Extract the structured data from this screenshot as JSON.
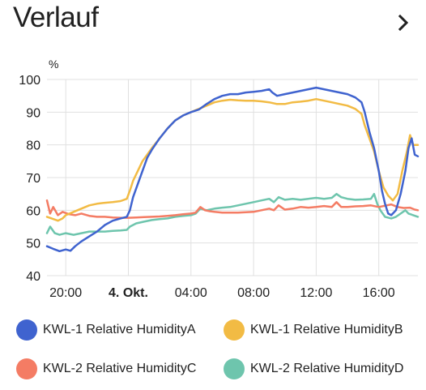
{
  "header": {
    "title": "Verlauf",
    "more_icon": "chevron-right-icon"
  },
  "colors": {
    "series_a": "#3f63cf",
    "series_b": "#f2bb44",
    "series_c": "#f47c64",
    "series_d": "#6ec5ad",
    "grid": "#e0e0e0",
    "text": "#212121"
  },
  "chart_data": {
    "type": "line",
    "ylabel": "%",
    "ylim": [
      40,
      100
    ],
    "yticks": [
      40,
      50,
      60,
      70,
      80,
      90,
      100
    ],
    "xlim": [
      18.8,
      42.5
    ],
    "xticks": [
      {
        "x": 20,
        "label": "20:00",
        "bold": false
      },
      {
        "x": 24,
        "label": "4. Okt.",
        "bold": true
      },
      {
        "x": 28,
        "label": "04:00",
        "bold": false
      },
      {
        "x": 32,
        "label": "08:00",
        "bold": false
      },
      {
        "x": 36,
        "label": "12:00",
        "bold": false
      },
      {
        "x": 40,
        "label": "16:00",
        "bold": false
      }
    ],
    "grid": true,
    "legend_position": "bottom",
    "series": [
      {
        "name": "KWL-1 Relative HumidityA",
        "color_key": "series_a",
        "points": [
          [
            18.8,
            49
          ],
          [
            19.2,
            48.2
          ],
          [
            19.6,
            47.5
          ],
          [
            20,
            48
          ],
          [
            20.3,
            47.6
          ],
          [
            20.6,
            49
          ],
          [
            21,
            50.5
          ],
          [
            21.5,
            52
          ],
          [
            22,
            53.5
          ],
          [
            22.5,
            55.5
          ],
          [
            23,
            56.8
          ],
          [
            23.5,
            57.5
          ],
          [
            23.9,
            58
          ],
          [
            24.1,
            60
          ],
          [
            24.3,
            64
          ],
          [
            24.6,
            68
          ],
          [
            24.9,
            72
          ],
          [
            25.2,
            76
          ],
          [
            25.5,
            78.5
          ],
          [
            26,
            82
          ],
          [
            26.5,
            85
          ],
          [
            27,
            87.5
          ],
          [
            27.5,
            89
          ],
          [
            28,
            90
          ],
          [
            28.5,
            90.8
          ],
          [
            29,
            92.5
          ],
          [
            29.5,
            94
          ],
          [
            30,
            95
          ],
          [
            30.5,
            95.5
          ],
          [
            31,
            95.5
          ],
          [
            31.5,
            96
          ],
          [
            32,
            96.2
          ],
          [
            32.5,
            96.5
          ],
          [
            33,
            97
          ],
          [
            33.2,
            96
          ],
          [
            33.5,
            95
          ],
          [
            34,
            95.5
          ],
          [
            34.5,
            96
          ],
          [
            35,
            96.5
          ],
          [
            35.5,
            97
          ],
          [
            36,
            97.5
          ],
          [
            36.5,
            97
          ],
          [
            37,
            96.5
          ],
          [
            37.5,
            96
          ],
          [
            38,
            95.5
          ],
          [
            38.5,
            94.5
          ],
          [
            38.9,
            93
          ],
          [
            39.1,
            90
          ],
          [
            39.4,
            84
          ],
          [
            39.7,
            79
          ],
          [
            40,
            72
          ],
          [
            40.2,
            66
          ],
          [
            40.4,
            62
          ],
          [
            40.6,
            59
          ],
          [
            40.8,
            58.5
          ],
          [
            41.1,
            60
          ],
          [
            41.4,
            65
          ],
          [
            41.7,
            72
          ],
          [
            41.9,
            79
          ],
          [
            42.1,
            82
          ],
          [
            42.3,
            77
          ],
          [
            42.5,
            76.5
          ]
        ]
      },
      {
        "name": "KWL-1 Relative HumidityB",
        "color_key": "series_b",
        "points": [
          [
            18.8,
            58
          ],
          [
            19.1,
            57.5
          ],
          [
            19.5,
            56.8
          ],
          [
            19.8,
            57.5
          ],
          [
            20,
            58.5
          ],
          [
            20.5,
            59.5
          ],
          [
            21,
            60.5
          ],
          [
            21.5,
            61.5
          ],
          [
            22,
            62
          ],
          [
            22.5,
            62.3
          ],
          [
            23,
            62.5
          ],
          [
            23.5,
            62.8
          ],
          [
            23.9,
            63.5
          ],
          [
            24.1,
            66
          ],
          [
            24.3,
            69
          ],
          [
            24.6,
            72
          ],
          [
            24.9,
            75
          ],
          [
            25.2,
            77
          ],
          [
            25.5,
            79
          ],
          [
            26,
            82
          ],
          [
            26.5,
            85
          ],
          [
            27,
            87.5
          ],
          [
            27.5,
            89
          ],
          [
            28,
            90
          ],
          [
            28.5,
            91
          ],
          [
            29,
            92
          ],
          [
            29.5,
            93
          ],
          [
            30,
            93.5
          ],
          [
            30.5,
            93.8
          ],
          [
            31,
            93.6
          ],
          [
            31.5,
            93.5
          ],
          [
            32,
            93.5
          ],
          [
            32.5,
            93.3
          ],
          [
            33,
            93
          ],
          [
            33.5,
            92.5
          ],
          [
            34,
            92.5
          ],
          [
            34.5,
            93
          ],
          [
            35,
            93.2
          ],
          [
            35.5,
            93.5
          ],
          [
            36,
            94
          ],
          [
            36.5,
            93.5
          ],
          [
            37,
            93
          ],
          [
            37.5,
            92.5
          ],
          [
            38,
            92
          ],
          [
            38.5,
            91
          ],
          [
            38.9,
            89.5
          ],
          [
            39.1,
            86
          ],
          [
            39.4,
            82
          ],
          [
            39.7,
            78
          ],
          [
            40,
            72
          ],
          [
            40.3,
            67
          ],
          [
            40.6,
            64.5
          ],
          [
            40.9,
            63
          ],
          [
            41.2,
            65
          ],
          [
            41.5,
            72
          ],
          [
            41.8,
            78
          ],
          [
            42,
            83
          ],
          [
            42.2,
            80
          ],
          [
            42.5,
            80
          ]
        ]
      },
      {
        "name": "KWL-2 Relative HumidityC",
        "color_key": "series_c",
        "points": [
          [
            18.8,
            63
          ],
          [
            19,
            59
          ],
          [
            19.2,
            61
          ],
          [
            19.5,
            58.5
          ],
          [
            19.8,
            59.5
          ],
          [
            20.2,
            58.8
          ],
          [
            20.6,
            58.5
          ],
          [
            21,
            59
          ],
          [
            21.5,
            58.3
          ],
          [
            22,
            58
          ],
          [
            22.5,
            58
          ],
          [
            23,
            57.8
          ],
          [
            23.5,
            57.7
          ],
          [
            24,
            57.7
          ],
          [
            24.5,
            57.8
          ],
          [
            25,
            57.9
          ],
          [
            25.5,
            58
          ],
          [
            26,
            58.1
          ],
          [
            26.5,
            58.3
          ],
          [
            27,
            58.5
          ],
          [
            27.5,
            58.8
          ],
          [
            28,
            59
          ],
          [
            28.3,
            59.3
          ],
          [
            28.6,
            61
          ],
          [
            28.9,
            60
          ],
          [
            29.2,
            59.7
          ],
          [
            29.5,
            59.5
          ],
          [
            30,
            59.3
          ],
          [
            30.5,
            59.3
          ],
          [
            31,
            59.3
          ],
          [
            31.5,
            59.4
          ],
          [
            32,
            59.5
          ],
          [
            32.5,
            60
          ],
          [
            33,
            60.5
          ],
          [
            33.3,
            60
          ],
          [
            33.6,
            61.5
          ],
          [
            34,
            60.2
          ],
          [
            34.5,
            60.5
          ],
          [
            35,
            61
          ],
          [
            35.5,
            60.8
          ],
          [
            36,
            61
          ],
          [
            36.5,
            61.3
          ],
          [
            37,
            61
          ],
          [
            37.3,
            62.5
          ],
          [
            37.6,
            61
          ],
          [
            38,
            61
          ],
          [
            38.5,
            61.2
          ],
          [
            39,
            61.3
          ],
          [
            39.5,
            61.5
          ],
          [
            40,
            61
          ],
          [
            40.5,
            61.5
          ],
          [
            40.8,
            61.8
          ],
          [
            41.2,
            61
          ],
          [
            41.6,
            60.7
          ],
          [
            42,
            60.8
          ],
          [
            42.3,
            60.2
          ],
          [
            42.5,
            60
          ]
        ]
      },
      {
        "name": "KWL-2 Relative HumidityD",
        "color_key": "series_d",
        "points": [
          [
            18.8,
            53
          ],
          [
            19,
            55
          ],
          [
            19.3,
            53
          ],
          [
            19.6,
            52.5
          ],
          [
            20,
            53
          ],
          [
            20.5,
            52.5
          ],
          [
            21,
            53
          ],
          [
            21.5,
            53.5
          ],
          [
            22,
            53.5
          ],
          [
            22.5,
            53.5
          ],
          [
            23,
            53.7
          ],
          [
            23.5,
            53.8
          ],
          [
            23.9,
            54
          ],
          [
            24.1,
            55
          ],
          [
            24.5,
            56
          ],
          [
            25,
            56.5
          ],
          [
            25.5,
            57
          ],
          [
            26,
            57.3
          ],
          [
            26.5,
            57.5
          ],
          [
            27,
            58
          ],
          [
            27.5,
            58.3
          ],
          [
            28,
            58.5
          ],
          [
            28.3,
            59
          ],
          [
            28.6,
            60.5
          ],
          [
            29,
            60
          ],
          [
            29.5,
            60.5
          ],
          [
            30,
            60.8
          ],
          [
            30.5,
            61
          ],
          [
            31,
            61.5
          ],
          [
            31.5,
            62
          ],
          [
            32,
            62.5
          ],
          [
            32.5,
            63
          ],
          [
            33,
            63.5
          ],
          [
            33.3,
            62.5
          ],
          [
            33.6,
            64
          ],
          [
            34,
            63.2
          ],
          [
            34.5,
            63.5
          ],
          [
            35,
            63.2
          ],
          [
            35.5,
            63.5
          ],
          [
            36,
            63.8
          ],
          [
            36.5,
            63.5
          ],
          [
            37,
            63.8
          ],
          [
            37.3,
            65
          ],
          [
            37.6,
            64
          ],
          [
            38,
            63.5
          ],
          [
            38.5,
            63.2
          ],
          [
            39,
            63.3
          ],
          [
            39.5,
            63.5
          ],
          [
            39.7,
            65
          ],
          [
            39.9,
            62
          ],
          [
            40.1,
            60
          ],
          [
            40.4,
            58
          ],
          [
            40.8,
            57.5
          ],
          [
            41.1,
            58
          ],
          [
            41.4,
            59
          ],
          [
            41.7,
            60
          ],
          [
            41.9,
            59
          ],
          [
            42.2,
            58.5
          ],
          [
            42.5,
            58
          ]
        ]
      }
    ]
  }
}
